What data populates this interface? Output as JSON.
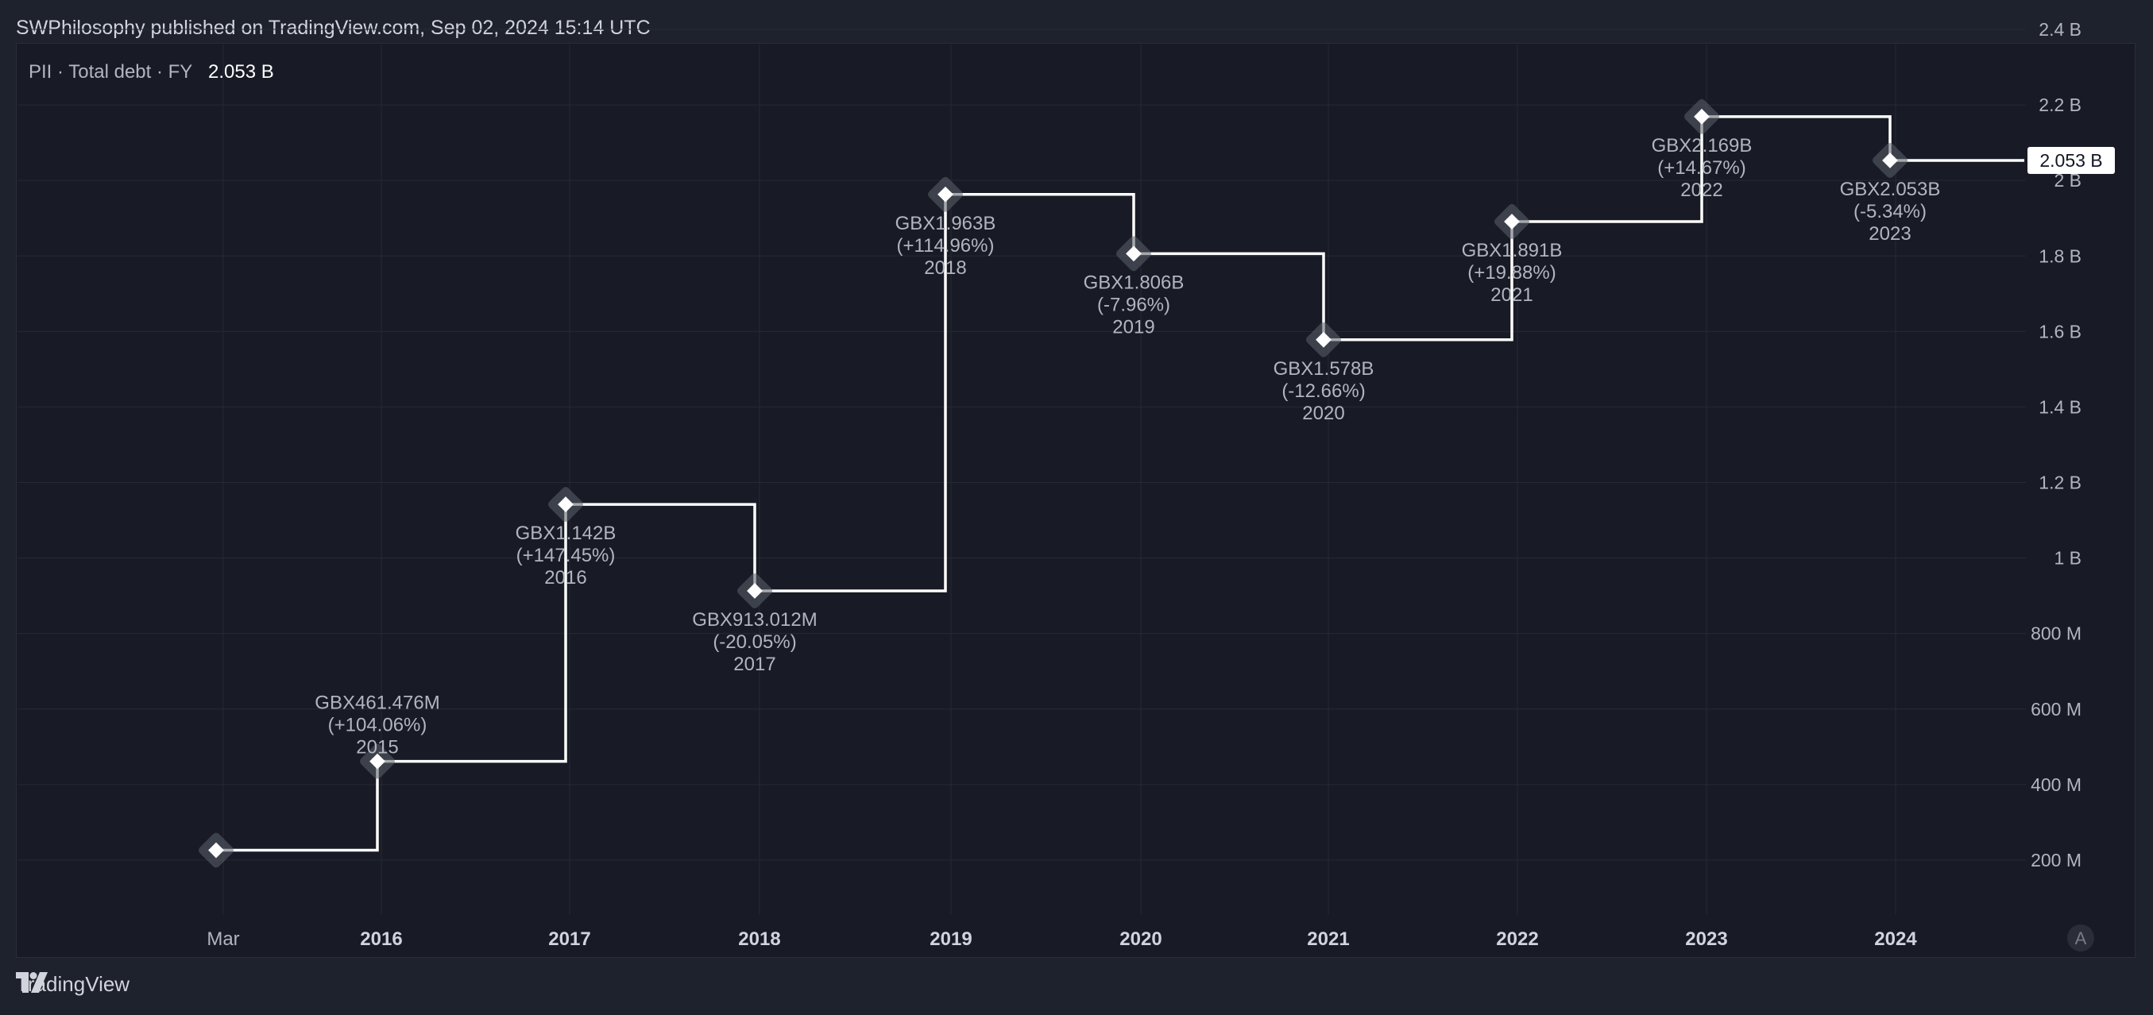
{
  "header": {
    "published": "SWPhilosophy published on TradingView.com, Sep 02, 2024 15:14 UTC"
  },
  "footer": {
    "brand": "TradingView"
  },
  "accent": {
    "line": "#ffffff",
    "background": "#181b25",
    "grid": "#262a35",
    "label": "#b2b5be"
  },
  "chart_data": {
    "type": "line",
    "step": true,
    "legend": {
      "symbol": "PII · Total debt · FY",
      "value": "2.053 B"
    },
    "last_value_label": "2.053 B",
    "auto_button": "A",
    "x_tick_labels": [
      "Mar",
      "2016",
      "2017",
      "2018",
      "2019",
      "2020",
      "2021",
      "2022",
      "2023",
      "2024"
    ],
    "y_tick_labels": [
      "200 M",
      "400 M",
      "600 M",
      "800 M",
      "1 B",
      "1.2 B",
      "1.4 B",
      "1.6 B",
      "1.8 B",
      "2 B",
      "2.2 B",
      "2.4 B"
    ],
    "y_ticks": [
      0.2,
      0.4,
      0.6,
      0.8,
      1.0,
      1.2,
      1.4,
      1.6,
      1.8,
      2.0,
      2.2,
      2.4
    ],
    "ylim": [
      -0.0,
      2.4
    ],
    "unit": "B",
    "points": [
      {
        "year": "2014",
        "value": 0.226,
        "value_label": "",
        "change_label": "",
        "show_label": false
      },
      {
        "year": "2015",
        "value": 0.461476,
        "value_label": "GBX461.476M",
        "change_label": "(+104.06%)",
        "show_label": true,
        "label_pos": "above"
      },
      {
        "year": "2016",
        "value": 1.142,
        "value_label": "GBX1.142B",
        "change_label": "(+147.45%)",
        "show_label": true,
        "label_pos": "below"
      },
      {
        "year": "2017",
        "value": 0.913012,
        "value_label": "GBX913.012M",
        "change_label": "(-20.05%)",
        "show_label": true,
        "label_pos": "below"
      },
      {
        "year": "2018",
        "value": 1.963,
        "value_label": "GBX1.963B",
        "change_label": "(+114.96%)",
        "show_label": true,
        "label_pos": "below"
      },
      {
        "year": "2019",
        "value": 1.806,
        "value_label": "GBX1.806B",
        "change_label": "(-7.96%)",
        "show_label": true,
        "label_pos": "below"
      },
      {
        "year": "2020",
        "value": 1.578,
        "value_label": "GBX1.578B",
        "change_label": "(-12.66%)",
        "show_label": true,
        "label_pos": "below"
      },
      {
        "year": "2021",
        "value": 1.891,
        "value_label": "GBX1.891B",
        "change_label": "(+19.88%)",
        "show_label": true,
        "label_pos": "below"
      },
      {
        "year": "2022",
        "value": 2.169,
        "value_label": "GBX2.169B",
        "change_label": "(+14.67%)",
        "show_label": true,
        "label_pos": "below"
      },
      {
        "year": "2023",
        "value": 2.053,
        "value_label": "GBX2.053B",
        "change_label": "(-5.34%)",
        "show_label": true,
        "label_pos": "below"
      }
    ]
  }
}
